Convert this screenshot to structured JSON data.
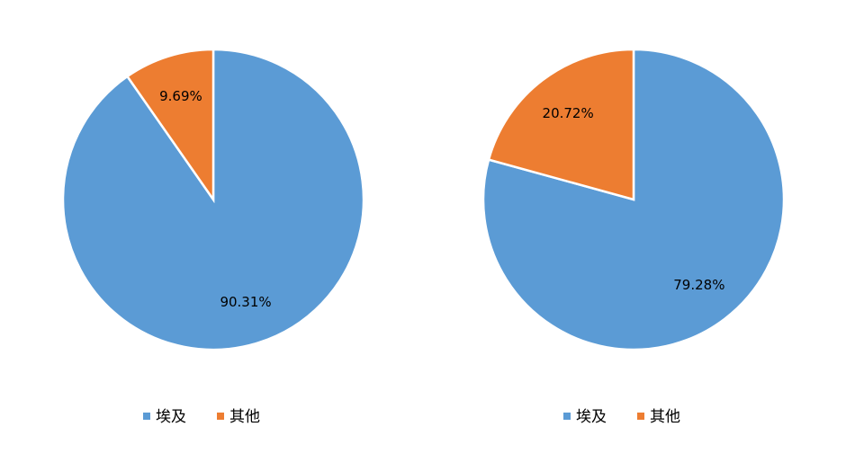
{
  "chart_data": [
    {
      "type": "pie",
      "categories": [
        "埃及",
        "其他"
      ],
      "values": [
        90.31,
        9.69
      ],
      "value_labels": [
        "90.31%",
        "9.69%"
      ],
      "colors": [
        "#5b9bd5",
        "#ed7d31"
      ]
    },
    {
      "type": "pie",
      "categories": [
        "埃及",
        "其他"
      ],
      "values": [
        79.28,
        20.72
      ],
      "value_labels": [
        "79.28%",
        "20.72%"
      ],
      "colors": [
        "#5b9bd5",
        "#ed7d31"
      ]
    }
  ]
}
